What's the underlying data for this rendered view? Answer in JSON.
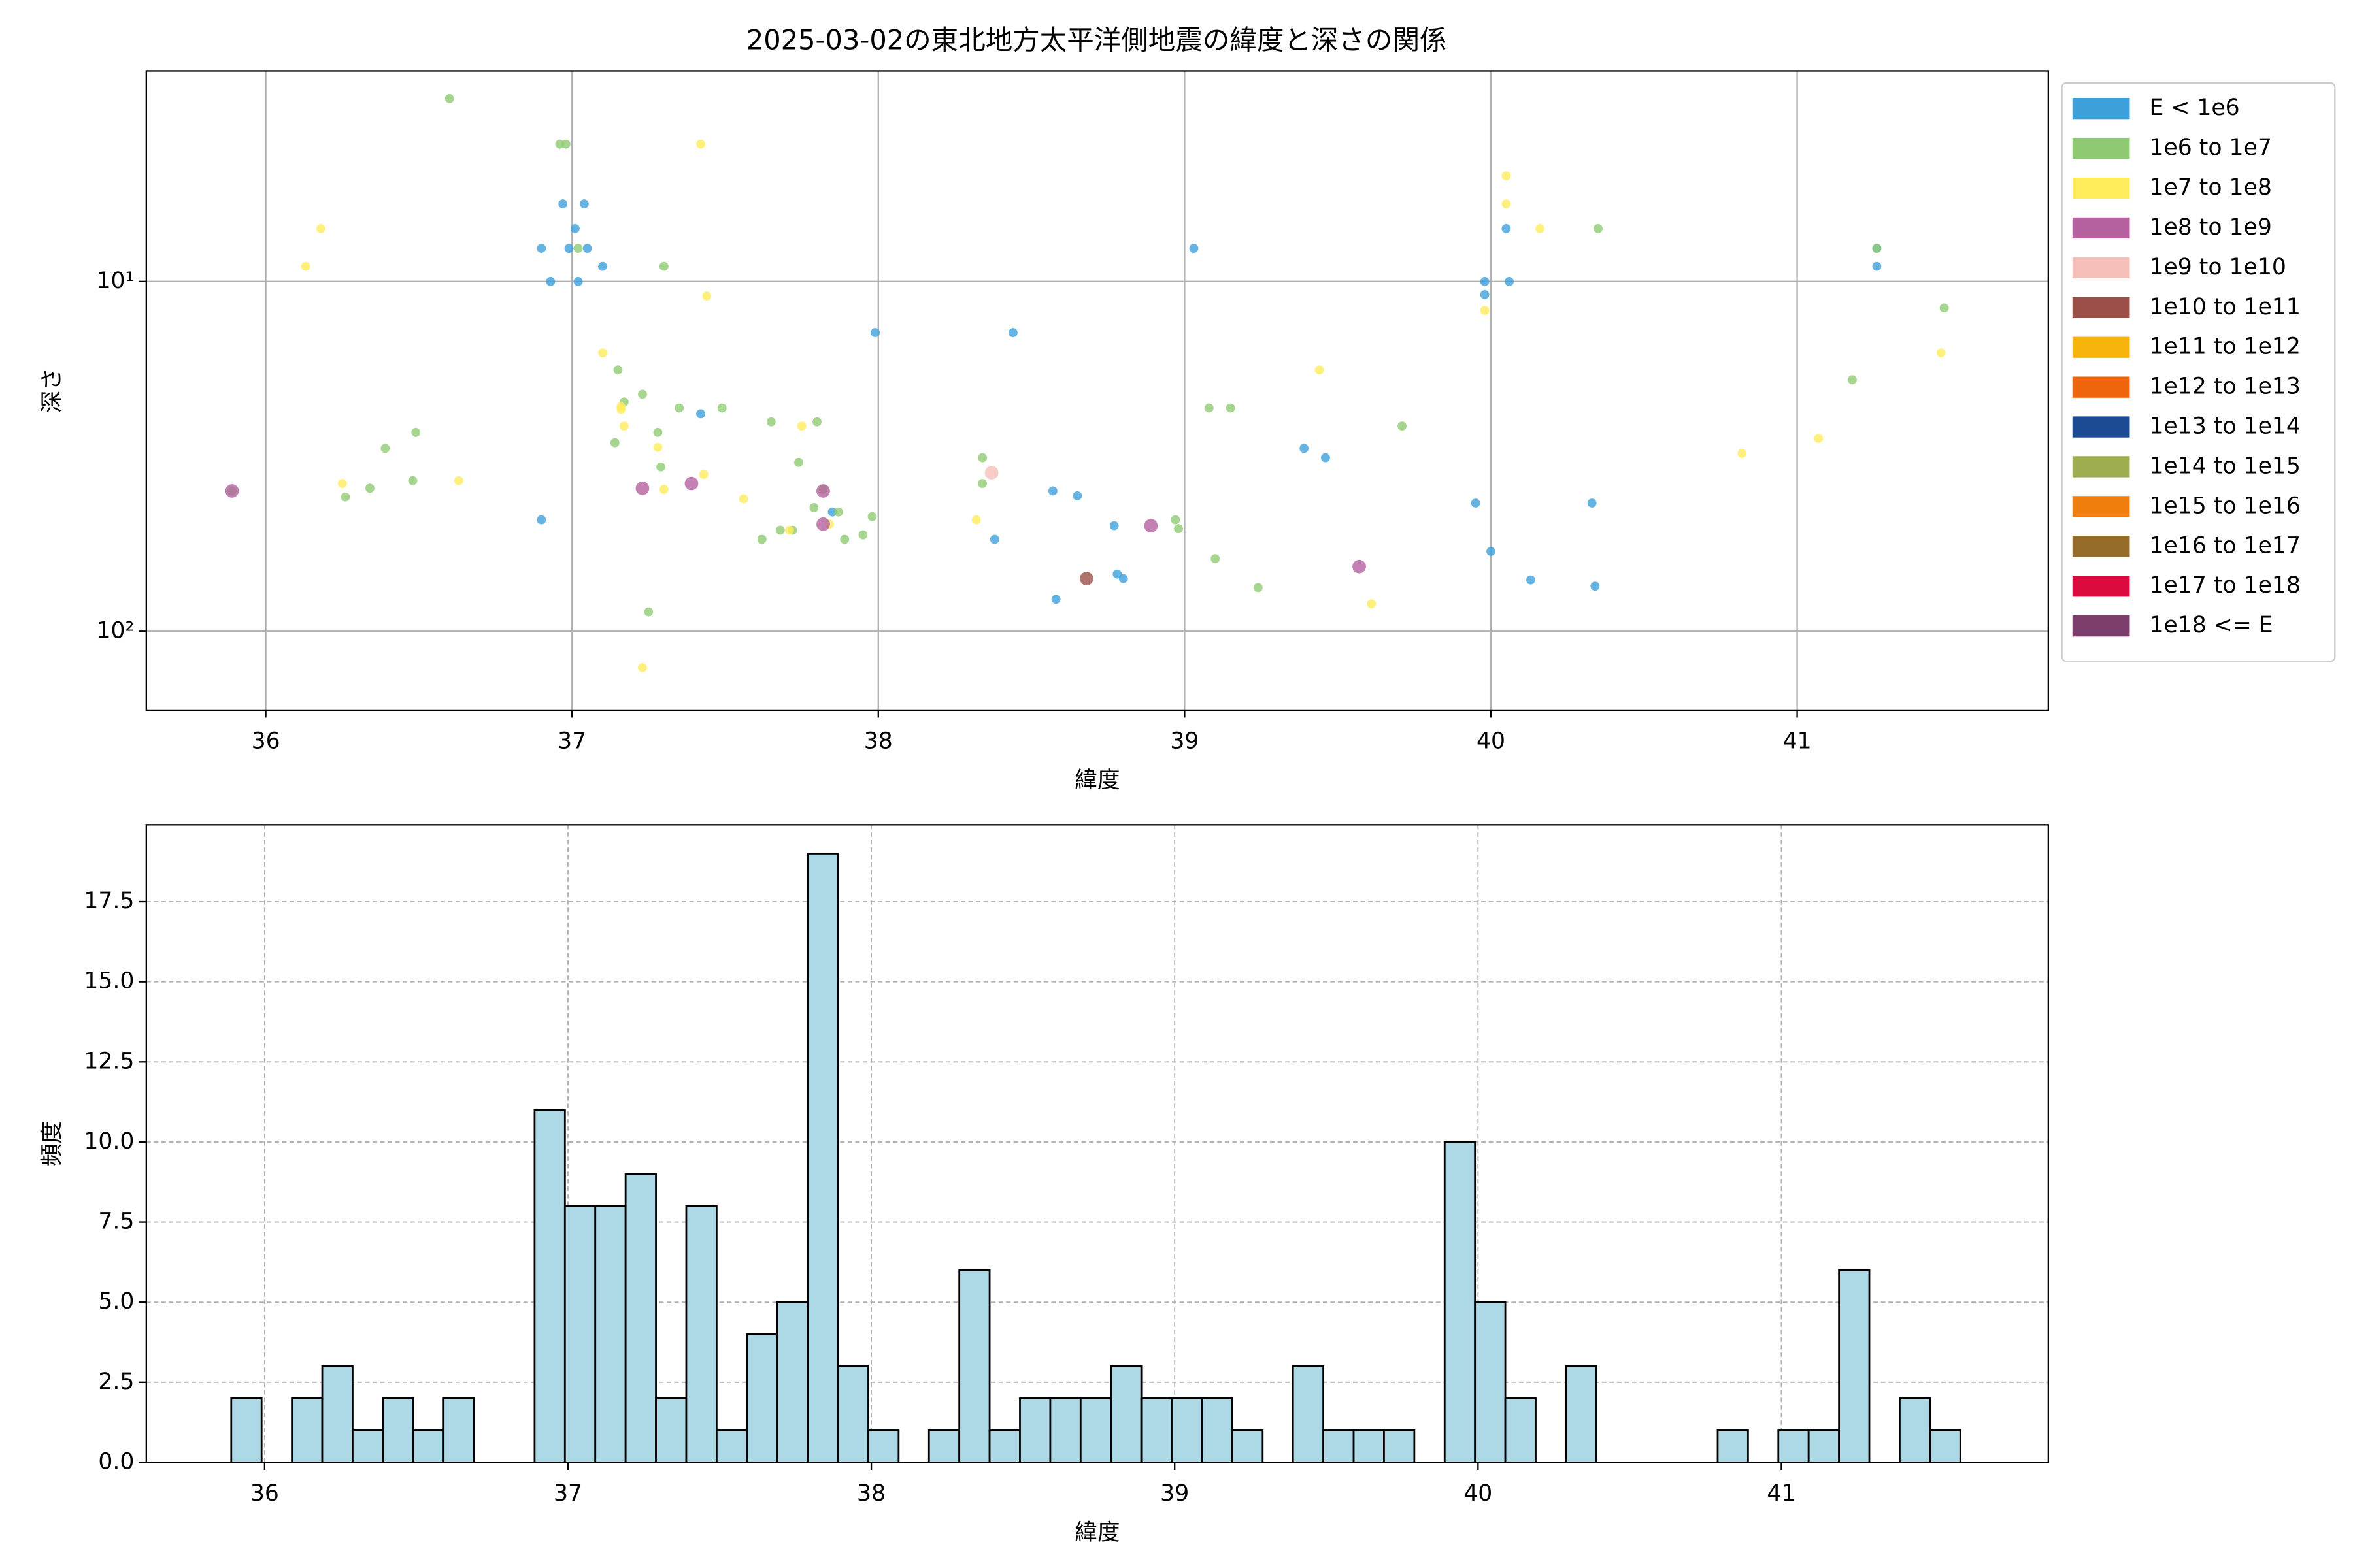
{
  "chart_data": [
    {
      "type": "scatter",
      "title": "2025-03-02の東北地方太平洋側地震の緯度と深さの関係",
      "x_label": "緯度",
      "y_label": "深さ",
      "xlim": [
        35.61,
        41.82
      ],
      "xticks": [
        36,
        37,
        38,
        39,
        40,
        41
      ],
      "ylim": [
        2.5,
        168
      ],
      "yscale": "log",
      "y_inverted": true,
      "yticks": [
        {
          "value": 10,
          "label": "10¹"
        },
        {
          "value": 100,
          "label": "10²"
        }
      ],
      "grid": true,
      "legend": "outside right",
      "series": [
        {
          "name": "E < 1e6",
          "color": "#3ea0db",
          "x": [
            36.9,
            36.93,
            36.97,
            37.04,
            36.99,
            37.01,
            37.05,
            37.1,
            37.02,
            36.9,
            37.42,
            37.99,
            38.44,
            38.57,
            38.65,
            38.38,
            38.58,
            38.77,
            38.78,
            38.8,
            39.03,
            39.39,
            39.46,
            39.95,
            39.98,
            39.98,
            40.06,
            40.05,
            40.0,
            40.13,
            40.33,
            40.34,
            41.26,
            41.26,
            37.85
          ],
          "values": [
            8.04,
            10,
            6.0,
            6.0,
            8.04,
            7.06,
            8.04,
            9.05,
            10,
            48,
            23.9,
            14.0,
            14.0,
            39.7,
            41,
            54.6,
            81,
            49.9,
            68.6,
            70.7,
            8.04,
            30,
            31.9,
            43,
            10,
            10.9,
            10,
            7.06,
            59.1,
            71.3,
            43,
            74.3,
            8.04,
            9.05,
            45.6
          ]
        },
        {
          "name": "1e6 to 1e7",
          "color": "#8fca72",
          "x": [
            36.6,
            36.96,
            36.98,
            37.02,
            37.3,
            37.15,
            37.23,
            37.17,
            37.14,
            37.28,
            37.35,
            37.29,
            37.49,
            37.65,
            37.8,
            37.74,
            37.82,
            37.87,
            37.98,
            37.95,
            37.89,
            37.62,
            37.68,
            37.72,
            37.79,
            38.34,
            38.34,
            36.34,
            36.39,
            36.49,
            36.48,
            36.26,
            35.89,
            37.25,
            38.97,
            38.98,
            39.1,
            39.24,
            39.08,
            39.15,
            39.71,
            40.35,
            41.18,
            41.48,
            41.26
          ],
          "values": [
            3.0,
            4.05,
            4.05,
            8.04,
            9.05,
            17.9,
            21.0,
            22.1,
            28.9,
            27.0,
            23.0,
            33.9,
            23.0,
            25.2,
            25.2,
            32.9,
            39.3,
            45.6,
            47.0,
            53.0,
            54.6,
            54.6,
            51.4,
            51.4,
            44.3,
            31.9,
            37.8,
            39.0,
            30,
            27.0,
            37.1,
            41.3,
            39.7,
            88,
            48,
            50.9,
            62,
            75,
            23,
            23,
            25.9,
            7.06,
            19.1,
            11.9,
            8.04
          ]
        },
        {
          "name": "1e7 to 1e8",
          "color": "#ffec5c",
          "x": [
            36.18,
            36.13,
            37.1,
            37.16,
            37.17,
            37.28,
            37.3,
            37.43,
            37.42,
            37.44,
            37.56,
            37.75,
            37.71,
            37.84,
            38.32,
            36.25,
            36.63,
            39.44,
            39.61,
            39.98,
            40.05,
            40.05,
            40.16,
            40.82,
            41.07,
            41.47,
            37.23,
            37.16
          ],
          "values": [
            7.06,
            9.05,
            16.0,
            22.8,
            25.9,
            29.8,
            39.3,
            35.6,
            4.05,
            11.0,
            41.8,
            25.9,
            51.4,
            49.4,
            48,
            37.8,
            37.1,
            17.9,
            83.5,
            12.1,
            4.99,
            6.0,
            7.06,
            31.0,
            28.1,
            16.0,
            127,
            23.2
          ]
        },
        {
          "name": "1e8 to 1e9",
          "color": "#b5609f",
          "x": [
            35.89,
            37.23,
            37.39,
            37.82,
            37.82,
            38.89,
            39.57
          ],
          "values": [
            39.7,
            39.0,
            37.8,
            39.7,
            49.4,
            49.9,
            65.3
          ]
        },
        {
          "name": "1e9 to 1e10",
          "color": "#f5c0b9",
          "x": [
            38.37
          ],
          "values": [
            35.2
          ]
        },
        {
          "name": "1e10 to 1e11",
          "color": "#9a5048",
          "x": [
            38.68
          ],
          "values": [
            70.7
          ]
        },
        {
          "name": "1e11 to 1e12",
          "color": "#f6b40d",
          "x": [],
          "values": []
        },
        {
          "name": "1e12 to 1e13",
          "color": "#ee650c",
          "x": [],
          "values": []
        },
        {
          "name": "1e13 to 1e14",
          "color": "#1c4b94",
          "x": [],
          "values": []
        },
        {
          "name": "1e14 to 1e15",
          "color": "#9ead4f",
          "x": [],
          "values": []
        },
        {
          "name": "1e15 to 1e16",
          "color": "#f07e0e",
          "x": [],
          "values": []
        },
        {
          "name": "1e16 to 1e17",
          "color": "#966c2b",
          "x": [],
          "values": []
        },
        {
          "name": "1e17 to 1e18",
          "color": "#dc0a3e",
          "x": [],
          "values": []
        },
        {
          "name": "1e18 <= E",
          "color": "#7c3e6c",
          "x": [],
          "values": []
        }
      ]
    },
    {
      "type": "histogram",
      "x_label": "緯度",
      "y_label": "頻度",
      "color": "#add8e6",
      "xlim": [
        35.61,
        41.88
      ],
      "xticks": [
        36,
        37,
        38,
        39,
        40,
        41
      ],
      "ylim": [
        0,
        19.9
      ],
      "yticks": [
        {
          "value": 0,
          "label": "0.0"
        },
        {
          "value": 2.5,
          "label": "2.5"
        },
        {
          "value": 5,
          "label": "5.0"
        },
        {
          "value": 7.5,
          "label": "7.5"
        },
        {
          "value": 10,
          "label": "10.0"
        },
        {
          "value": 12.5,
          "label": "12.5"
        },
        {
          "value": 15,
          "label": "15.0"
        },
        {
          "value": 17.5,
          "label": "17.5"
        }
      ],
      "grid": true,
      "bins": [
        35.89,
        35.99,
        36.09,
        36.19,
        36.29,
        36.39,
        36.49,
        36.59,
        36.69,
        36.79,
        36.89,
        36.99,
        37.09,
        37.19,
        37.29,
        37.39,
        37.49,
        37.59,
        37.69,
        37.79,
        37.89,
        37.99,
        38.09,
        38.19,
        38.29,
        38.39,
        38.49,
        38.59,
        38.69,
        38.79,
        38.89,
        38.99,
        39.09,
        39.19,
        39.29,
        39.39,
        39.49,
        39.59,
        39.69,
        39.79,
        39.89,
        39.99,
        40.09,
        40.19,
        40.29,
        40.39,
        40.49,
        40.59,
        40.69,
        40.79,
        40.89,
        40.99,
        41.09,
        41.19,
        41.29,
        41.39,
        41.49,
        41.59
      ],
      "values": [
        2,
        0,
        2,
        3,
        1,
        2,
        1,
        2,
        0,
        0,
        11,
        8,
        8,
        9,
        2,
        8,
        1,
        4,
        5,
        19,
        3,
        1,
        0,
        1,
        6,
        1,
        2,
        2,
        2,
        3,
        2,
        2,
        2,
        1,
        0,
        3,
        1,
        1,
        1,
        0,
        10,
        5,
        2,
        0,
        3,
        0,
        0,
        0,
        0,
        1,
        0,
        1,
        1,
        6,
        0,
        2,
        1
      ]
    }
  ]
}
